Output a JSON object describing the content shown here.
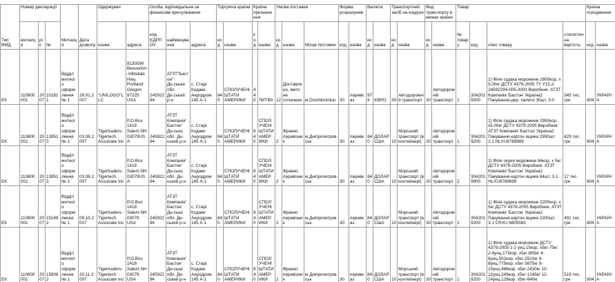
{
  "table": {
    "header": [
      {
        "label": "Тип ВМД"
      },
      {
        "label": "Номер декларації",
        "columns": [
          "митниця",
          "рік",
          "№"
        ]
      },
      {
        "label": "Митниця"
      },
      {
        "label": "Дата дозволу"
      },
      {
        "label": "Одержувач",
        "columns": [
          "назва",
          "адреса"
        ]
      },
      {
        "label": "Особа, відповідальна за фінансове врегулювання",
        "columns": [
          "код ЄДРПОУ",
          "найменування",
          "адреса"
        ]
      },
      {
        "label": "Торгуюча країна",
        "columns": [
          "код",
          "назва"
        ]
      },
      {
        "label": "Країна призначення",
        "columns": [
          "код",
          "назва"
        ]
      },
      {
        "label": "Умова поставки",
        "columns": [
          "код",
          "назва",
          "Місце поставки"
        ]
      },
      {
        "label": "Форма розрахунків",
        "columns": [
          "код",
          "назва"
        ]
      },
      {
        "label": "Валюта",
        "columns": [
          "код",
          "назва"
        ]
      },
      {
        "label": "Транспортний засіб на кордоні",
        "columns": [
          "код",
          "назва"
        ]
      },
      {
        "label": "Вид транспорту в межах країни",
        "columns": [
          "код",
          "назва"
        ]
      },
      {
        "label": "Товар",
        "columns": [
          "№ товару",
          "код",
          "опис товару",
          "статистична вартість"
        ]
      },
      {
        "label": "Країна походження",
        "columns": [
          "код",
          "назва"
        ]
      }
    ],
    "rows": [
      [
        "ЕК",
        "110800001",
        "2007",
        "101811",
        "Відділ митного оформлення № 1",
        "26.01.2007",
        "\"UNILOGO\"LLC",
        "8130SW Beaverton-Hillsdale Hwy. Portland Oregon 97225 USA",
        "24592294",
        "АТЗТ\"Бастон\" Дн.ськая обл. Дн.ський р-н",
        "с. Старі Кодаки Аеродром 145 А-1",
        "840",
        "СПОЛУЧЕНІ ШТАТИ АМЕРИКИ",
        "440",
        "ЛИТВА",
        "12",
        "Доставлено, мито не сплачено",
        "м.Drushkininkai",
        "30",
        "перевказ",
        "978",
        "ЄВРО",
        "30",
        "Автодорожній транспорт",
        "30",
        "Автодорожній транспорт",
        "1",
        "3042019200",
        "1) Філе судака морожене 2800кор. х 5.00кг ДСТУ 4379-2005 ТУ У15.2-24592294-005-2003 Виробник: АТЗТ Компанія 'Бастон' Україна2 Пакування-дер. палети 30шт. 3.0",
        "345 тис. грн",
        "804",
        "УКРАЇНА"
      ],
      [
        "ЕК",
        "110800001",
        "2007",
        "139510",
        "Відділ митного оформлення № 1",
        "03.08.2007",
        "Tigertraders-Tigertech Associate Inc",
        "P.O.Box 1418 Salem NH 03079USA",
        "24592294",
        "АТЗТ Компанія'Бастон' Дн-ська обл. Дн-ський р-н",
        "с. Старі Кодаки Аеродром 145 А-1",
        "840",
        "СПОЛУЧЕНІ ШТАТИ АМЕРИКИ",
        "840",
        "СПОЛУЧЕНІ ШТАТИ АМЕРИКИ",
        "2",
        "Франко перевізник",
        "м.Дніпропетровськ",
        "30",
        "перевказ",
        "840",
        "ДОЛАР США",
        "10",
        "Морський транспорт (в контейнері)",
        "30",
        "Автодорожній транспорт",
        "1",
        "3042019200",
        "1) Філе судака морожене 2950кор. х5.00кг ДСТУ 4379-2005 Виробник: АТЗТ Компанія 'Бастон' Україна2 Пакування-картон ящики 2950шт. 3.1 HLXU6768889",
        "429 тис. грн",
        "804",
        "УКРАЇНА"
      ],
      [
        "ЕК",
        "110800001",
        "2007",
        "139513",
        "Відділ митного оформлення № 1",
        "03.08.2007",
        "Tigertraders-Tigertech Associate Inc",
        "P.O.Box 1418 Salem NH 03079USA",
        "24592294",
        "АТЗТ Компанія'Бастон' Дн-ська обл. Дн-ський р-н",
        "с. Старі Кодаки Аеродром 145 А-1",
        "840",
        "СПОЛУЧЕНІ ШТАТИ АМЕРИКИ",
        "840",
        "СПОЛУЧЕНІ ШТАТИ АМЕРИКИ",
        "2",
        "Франко перевізник",
        "м.Дніпропетровськ",
        "30",
        "перевказ",
        "840",
        "ДОЛАР США",
        "10",
        "Морський транспорт (в контейнері)",
        "30",
        "Автодорожній транспорт",
        "2",
        "3042019900",
        "1) Філе окуня морожене 84кор. х 5кг ДСТУ 4379-2005 Виробник: АТЗТ Компанія 'Бастон' Україна2 Пакування-картон ящики 84шт. 3.1 HLXU6768889",
        "17 тис. грн",
        "804",
        "УКРАЇНА"
      ],
      [
        "ЕК",
        "110800001",
        "2007",
        "151692",
        "Відділ митного оформлення № 1",
        "09.10.2007",
        "Tigertraders-Tigertech Associate Inc",
        "P.O.Box 1418 Salem NH 03079 USA",
        "24592294",
        "АТЗТ Компанія'Бастон' Дн-ська обл. Дн-ський р-н",
        "с. Старі Кодаки Аеродром 145 А-1",
        "840",
        "СПОЛУЧЕНІ ШТАТИ АМЕРИКИ",
        "840",
        "СПОЛУЧЕНІ ШТАТИ АМЕРИКИ",
        "2",
        "Франко перевізник",
        "м.Дніпропетровськ",
        "30",
        "перевказ",
        "840",
        "ДОЛАР США",
        "10",
        "Морський транспорт (в контейнері)",
        "30",
        "Автодорожній транспорт",
        "1",
        "3042019200",
        "1) Філе судака морожене 2200кор. х 5кг ДСТУ 4379-2005 Виробник: АТЗТ Компанія 'Бастон' Україна2 Пакування-картон ящики 2200шт. 3.1 CRXU 6805583",
        "491 тис. грн",
        "804",
        "УКРАЇНА"
      ],
      [
        "ЕК",
        "110800001",
        "2007",
        "158082",
        "Відділ митного оформлення № 1",
        "20.11.2007",
        "Tigertraders-Tigertech Associate Inc",
        "P.O.Box 1418 Salem NH 03079 USA",
        "24592294",
        "АТЗТ Компанія'Бастон' Дн-ська обл. Дн-ський р-н",
        "с. Старі Кодаки Аеродром 145 А-1",
        "840",
        "СПОЛУЧЕНІ ШТАТИ АМЕРИКИ",
        "840",
        "СПОЛУЧЕНІ ШТАТИ АМЕРИКИ",
        "2",
        "Франко перевізник",
        "м.Дніпропетровськ",
        "30",
        "перевказ",
        "840",
        "ДОЛАР США",
        "10",
        "Морський транспорт (в контейнері)",
        "30",
        "Автодорожній транспорт",
        "1",
        "3042019200",
        "1) Філе судака морожене ДСТУ 4379-2005 1-2 унц.15кор. х5кг-75кг 2-4унц.173кор. х5кг-865кг 4-6унц.502кор. х5кг-2510кг 6-8унц.775кор. х5кг-3875кг 8-10унц.486кор. х5кг-2430кг 10-12унц.249кор. х5кг-1245кг 12-14унц.128кор. х5кг-640кг",
        "519 тис. грн",
        "804",
        "УКРАЇНА"
      ]
    ]
  }
}
